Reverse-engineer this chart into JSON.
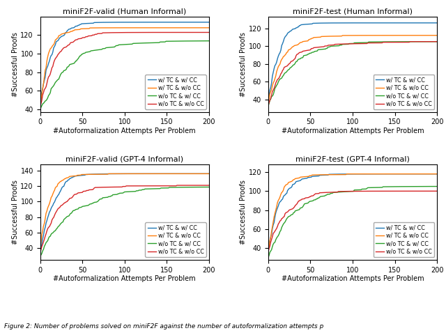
{
  "titles": [
    "miniF2F-valid (Human Informal)",
    "miniF2F-test (Human Informal)",
    "miniF2F-valid (GPT-4 Informal)",
    "miniF2F-test (GPT-4 Informal)"
  ],
  "xlabel": "#Autoformalization Attempts Per Problem",
  "ylabel": "#Successful Proofs",
  "legend_labels": [
    "w/ TC & w/ CC",
    "w/ TC & w/o CC",
    "w/o TC & w/ CC",
    "w/o TC & w/o CC"
  ],
  "colors": [
    "#1f77b4",
    "#ff7f0e",
    "#2ca02c",
    "#d62728"
  ],
  "xlim": [
    0,
    200
  ],
  "xticks": [
    0,
    50,
    100,
    150,
    200
  ],
  "caption": "Figure 2: Number of problems solved on miniF2F against the number of autoformalization attempts p...",
  "subplots": [
    {
      "title": "miniF2F-valid (Human Informal)",
      "ylim": [
        37,
        140
      ],
      "yticks": [
        40,
        60,
        80,
        100,
        120
      ],
      "curves": [
        {
          "start": 40,
          "end": 134,
          "k": 14,
          "seed": 1
        },
        {
          "start": 40,
          "end": 128,
          "k": 17,
          "seed": 2
        },
        {
          "start": 40,
          "end": 114,
          "k": 5,
          "seed": 3
        },
        {
          "start": 40,
          "end": 123,
          "k": 11,
          "seed": 4
        }
      ]
    },
    {
      "title": "miniF2F-test (Human Informal)",
      "ylim": [
        26,
        133
      ],
      "yticks": [
        40,
        60,
        80,
        100,
        120
      ],
      "curves": [
        {
          "start": 32,
          "end": 126,
          "k": 16,
          "seed": 11
        },
        {
          "start": 32,
          "end": 112,
          "k": 12,
          "seed": 12
        },
        {
          "start": 30,
          "end": 105,
          "k": 7,
          "seed": 13
        },
        {
          "start": 32,
          "end": 105,
          "k": 8,
          "seed": 14
        }
      ]
    },
    {
      "title": "miniF2F-valid (GPT-4 Informal)",
      "ylim": [
        25,
        148
      ],
      "yticks": [
        40,
        60,
        80,
        100,
        120,
        140
      ],
      "curves": [
        {
          "start": 33,
          "end": 136,
          "k": 13,
          "seed": 21
        },
        {
          "start": 33,
          "end": 136,
          "k": 18,
          "seed": 22
        },
        {
          "start": 29,
          "end": 119,
          "k": 5,
          "seed": 23
        },
        {
          "start": 33,
          "end": 121,
          "k": 11,
          "seed": 24
        }
      ]
    },
    {
      "title": "miniF2F-test (GPT-4 Informal)",
      "ylim": [
        28,
        128
      ],
      "yticks": [
        40,
        60,
        80,
        100,
        120
      ],
      "curves": [
        {
          "start": 32,
          "end": 118,
          "k": 12,
          "seed": 31
        },
        {
          "start": 32,
          "end": 118,
          "k": 16,
          "seed": 32
        },
        {
          "start": 29,
          "end": 105,
          "k": 6,
          "seed": 33
        },
        {
          "start": 32,
          "end": 100,
          "k": 10,
          "seed": 34
        }
      ]
    }
  ]
}
